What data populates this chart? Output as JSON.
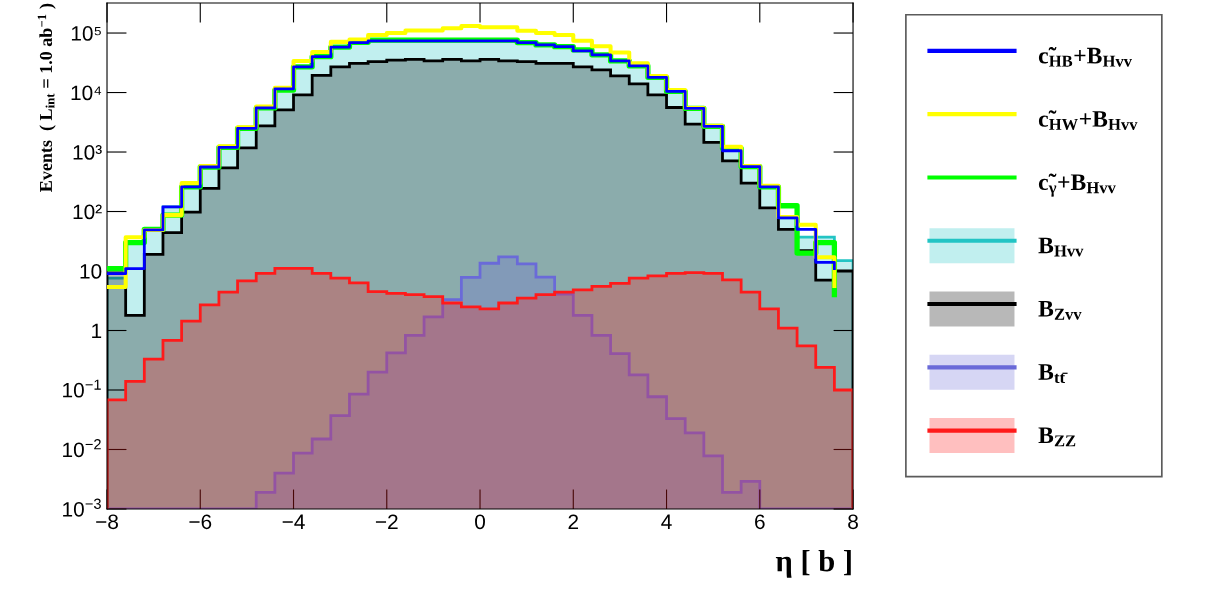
{
  "chart_data": {
    "type": "histogram",
    "xlabel": "η [ b ]",
    "ylabel": "Events  ( L$_{int}$ = 1.0 ab$^{−1}$ )",
    "bins": [
      -8,
      -7.6,
      -7.2,
      -6.8,
      -6.4,
      -6,
      -5.6,
      -5.2,
      -4.8,
      -4.4,
      -4,
      -3.6,
      -3.2,
      -2.8,
      -2.4,
      -2,
      -1.6,
      -1.2,
      -0.8,
      -0.4,
      0,
      0.4,
      0.8,
      1.2,
      1.6,
      2,
      2.4,
      2.8,
      3.2,
      3.6,
      4,
      4.4,
      4.8,
      5.2,
      5.6,
      6,
      6.4,
      6.8,
      7.2,
      7.6,
      8
    ],
    "series": [
      {
        "name": "c̃$_{HB}$+B$_{Hvv}$",
        "type": "step",
        "color": "#0000ff",
        "x": [
          -8,
          -7.6,
          -7.2,
          -6.8,
          -6.4,
          -6,
          -5.6,
          -5.2,
          -4.8,
          -4.4,
          -4,
          -3.6,
          -3.2,
          -2.8,
          -2.4,
          -2,
          -1.6,
          -1.2,
          -0.8,
          -0.4,
          0,
          0.4,
          0.8,
          1.2,
          1.6,
          2,
          2.4,
          2.8,
          3.2,
          3.6,
          4,
          4.4,
          4.8,
          5.2,
          5.6,
          6,
          6.4,
          6.8,
          7.2,
          7.6
        ],
        "values": [
          9,
          11,
          49,
          120,
          260,
          560,
          1200,
          2500,
          5500,
          11500,
          27000,
          40000,
          58000,
          69000,
          74000,
          74000,
          74000,
          74000,
          74000,
          74000,
          74000,
          74000,
          69000,
          63000,
          59000,
          50000,
          43000,
          34000,
          28000,
          18000,
          10500,
          5400,
          2700,
          1050,
          570,
          260,
          78,
          50,
          14,
          11
        ]
      },
      {
        "name": "c̃$_{HW}$+B$_{Hvv}$",
        "type": "step",
        "color": "#ffff00",
        "x": [
          -8,
          -7.6,
          -7.2,
          -6.8,
          -6.4,
          -6,
          -5.6,
          -5.2,
          -4.8,
          -4.4,
          -4,
          -3.6,
          -3.2,
          -2.8,
          -2.4,
          -2,
          -1.6,
          -1.2,
          -0.8,
          -0.4,
          0,
          0.4,
          0.8,
          1.2,
          1.6,
          2,
          2.4,
          2.8,
          3.2,
          3.6,
          4,
          4.4,
          4.8,
          5.2,
          5.6,
          6,
          6.4,
          6.8,
          7.2,
          7.6
        ],
        "values": [
          5.4,
          37,
          49,
          87,
          300,
          580,
          1250,
          2600,
          5800,
          12000,
          34000,
          48000,
          71000,
          78000,
          93000,
          100000,
          110000,
          110000,
          120000,
          131000,
          125000,
          125000,
          109000,
          100000,
          93000,
          74000,
          60000,
          47000,
          31000,
          19000,
          11000,
          5500,
          2750,
          1230,
          580,
          270,
          81,
          60,
          17,
          5.6
        ]
      },
      {
        "name": "c̃$_{γ}$+B$_{Hvv}$",
        "type": "step",
        "color": "#00ff00",
        "x": [
          -8,
          -7.6,
          -7.2,
          -6.8,
          -6.4,
          -6,
          -5.6,
          -5.2,
          -4.8,
          -4.4,
          -4,
          -3.6,
          -3.2,
          -2.8,
          -2.4,
          -2,
          -1.6,
          -1.2,
          -0.8,
          -0.4,
          0,
          0.4,
          0.8,
          1.2,
          1.6,
          2,
          2.4,
          2.8,
          3.2,
          3.6,
          4,
          4.4,
          4.8,
          5.2,
          5.6,
          6,
          6.4,
          6.8,
          7.2,
          7.6
        ],
        "values": [
          11,
          30,
          50,
          87,
          260,
          560,
          1200,
          2500,
          5500,
          11000,
          27000,
          40000,
          58000,
          70000,
          76000,
          76000,
          76000,
          76000,
          76000,
          76000,
          76000,
          76000,
          69000,
          63000,
          59000,
          52000,
          43000,
          34000,
          28000,
          18000,
          10500,
          5400,
          2700,
          1150,
          570,
          260,
          125,
          20,
          30,
          4
        ]
      },
      {
        "name": "B$_{Hvv}$",
        "color": "#22c4c4",
        "values": [
          7.6,
          30,
          49,
          120,
          260,
          560,
          1200,
          2500,
          5500,
          11000,
          27000,
          40000,
          58000,
          69000,
          74000,
          74000,
          74000,
          74000,
          74000,
          74000,
          74000,
          74000,
          69000,
          63000,
          59000,
          52000,
          43000,
          34000,
          28000,
          18000,
          10500,
          5400,
          2700,
          1150,
          570,
          260,
          78,
          37,
          37,
          15
        ]
      },
      {
        "name": "B$_{Zvv}$",
        "color": "#000000",
        "values": [
          9,
          1.8,
          19,
          44,
          98,
          245,
          540,
          1170,
          2750,
          5100,
          9100,
          19500,
          27000,
          31000,
          33000,
          35000,
          36000,
          34000,
          36000,
          34000,
          36000,
          34000,
          33000,
          31000,
          31000,
          27000,
          24000,
          19000,
          14000,
          9100,
          5600,
          2950,
          1450,
          710,
          300,
          115,
          50,
          22,
          7,
          10
        ]
      },
      {
        "name": "B$_{tt̄}$",
        "color": "#6a6ad8",
        "values": [
          0.001,
          0.001,
          0.001,
          0.001,
          0.001,
          0.001,
          0.001,
          0.001,
          0.0019,
          0.004,
          0.0087,
          0.015,
          0.037,
          0.085,
          0.2,
          0.42,
          0.83,
          1.7,
          3.3,
          7.8,
          13.5,
          17.3,
          13.2,
          7.9,
          4.1,
          1.8,
          0.83,
          0.41,
          0.18,
          0.077,
          0.033,
          0.019,
          0.0078,
          0.0019,
          0.0029,
          0.001,
          0.001,
          0.001,
          0.001,
          0.001
        ]
      },
      {
        "name": "B$_{ZZ}$",
        "color": "#ff1a1a",
        "values": [
          0.068,
          0.14,
          0.33,
          0.68,
          1.44,
          2.7,
          4.4,
          6.8,
          9.1,
          11.1,
          11.1,
          9.1,
          7.6,
          6.3,
          4.5,
          4.2,
          4.0,
          3.7,
          2.9,
          2.5,
          2.3,
          2.9,
          3.5,
          4.0,
          4.4,
          4.8,
          5.5,
          6.2,
          7.6,
          8.3,
          9.1,
          9.4,
          9.1,
          7.1,
          4.4,
          2.3,
          1.1,
          0.55,
          0.24,
          0.1
        ]
      }
    ],
    "xlim": [
      -8,
      8
    ],
    "xticks": [
      {
        "value": -8,
        "label": "−8"
      },
      {
        "value": -6,
        "label": "−6"
      },
      {
        "value": -4,
        "label": "−4"
      },
      {
        "value": -2,
        "label": "−2"
      },
      0,
      2,
      4,
      6,
      8
    ],
    "log": true,
    "ylim": [
      0.001,
      320000
    ],
    "yticks": [
      {
        "value": 0.001,
        "label": "10$^{−3}$"
      },
      {
        "value": 0.01,
        "label": "10$^{−2}$"
      },
      {
        "value": 0.1,
        "label": "10$^{−1}$"
      },
      1,
      10,
      {
        "value": 100,
        "label": "10²"
      },
      {
        "value": 1000,
        "label": "10³"
      },
      {
        "value": 10000,
        "label": "10⁴"
      },
      {
        "value": 100000,
        "label": "10⁵"
      }
    ],
    "legend": "right",
    "grid": false
  }
}
